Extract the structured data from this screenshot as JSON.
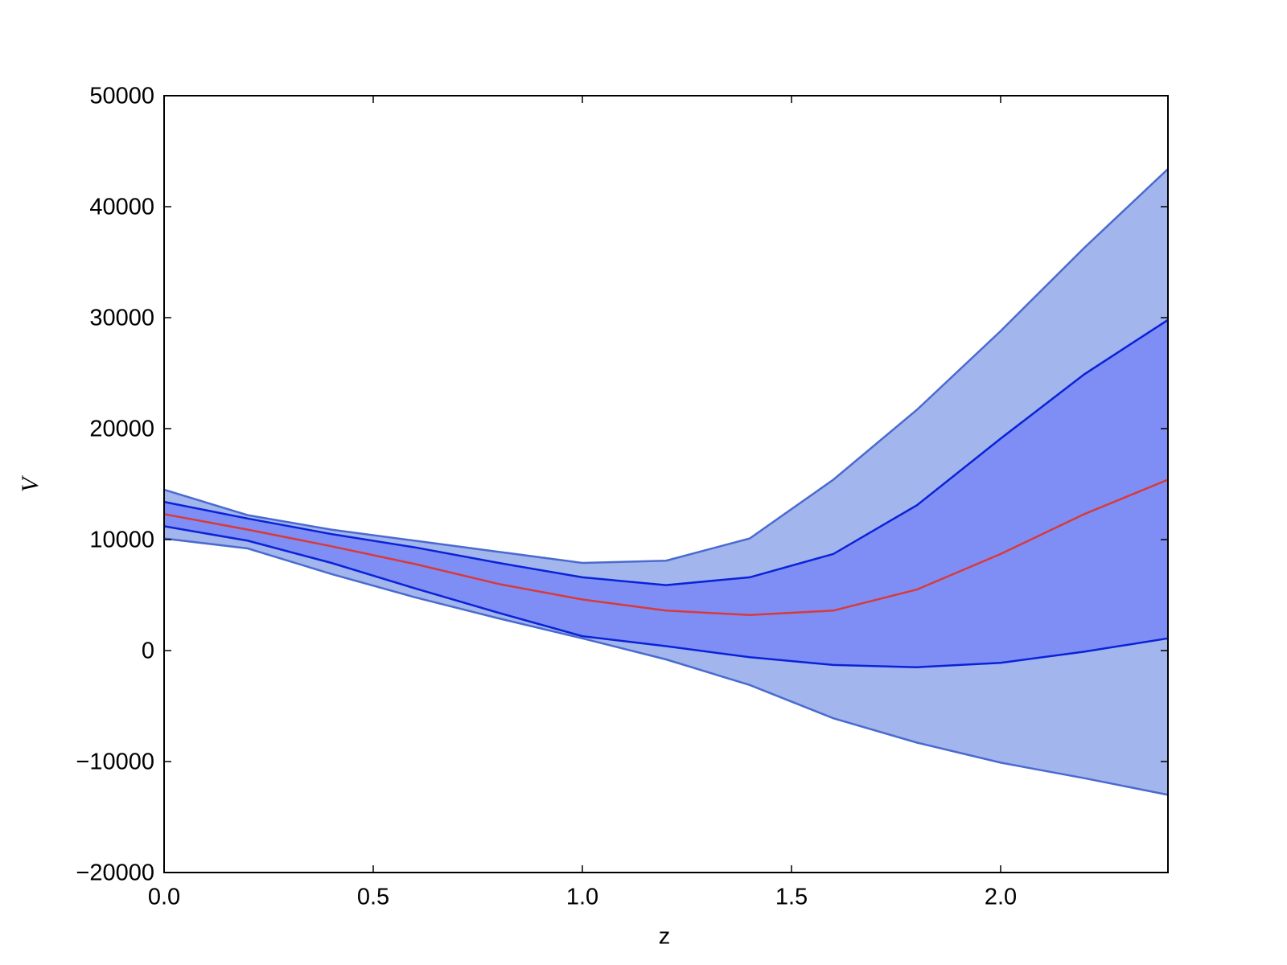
{
  "chart_data": {
    "type": "band-line",
    "x_label": "z",
    "y_label": "V",
    "x": [
      0,
      0.2,
      0.4,
      0.6,
      0.8,
      1.0,
      1.2,
      1.4,
      1.6,
      1.8,
      2.0,
      2.2,
      2.4
    ],
    "bands": [
      {
        "color": "#4a6ad0",
        "fill": "#a2b5ed",
        "upper": [
          14500,
          12200,
          10900,
          9900,
          8900,
          7900,
          8100,
          10100,
          15400,
          21700,
          28800,
          36300,
          43400
        ],
        "lower": [
          10100,
          9200,
          6900,
          4800,
          2900,
          1100,
          -800,
          -3100,
          -6100,
          -8300,
          -10100,
          -11500,
          -13000
        ]
      },
      {
        "color": "#0a22d8",
        "fill": "#7f8ef5",
        "upper": [
          13400,
          11900,
          10500,
          9300,
          7900,
          6600,
          5900,
          6600,
          8700,
          13100,
          19100,
          24900,
          29800
        ],
        "lower": [
          11200,
          9900,
          7900,
          5600,
          3400,
          1300,
          400,
          -600,
          -1300,
          -1500,
          -1100,
          -100,
          1100
        ]
      }
    ],
    "series": [
      {
        "color": "#d83a3a",
        "values": [
          12300,
          10900,
          9400,
          7800,
          6000,
          4600,
          3600,
          3200,
          3600,
          5500,
          8700,
          12300,
          15400
        ]
      }
    ],
    "xlim": [
      0,
      2.4
    ],
    "xticks": [
      {
        "value": 0,
        "label": "0.0"
      },
      0.5,
      {
        "value": 1,
        "label": "1.0"
      },
      1.5,
      {
        "value": 2,
        "label": "2.0"
      }
    ],
    "ylim": [
      -20000,
      50000
    ],
    "yticks": [
      {
        "value": -20000,
        "label": "−20000"
      },
      {
        "value": -10000,
        "label": "−10000"
      },
      0,
      10000,
      20000,
      30000,
      40000,
      50000
    ]
  }
}
